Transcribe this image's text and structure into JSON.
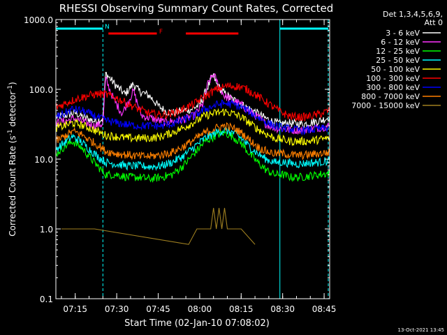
{
  "chart_data": {
    "type": "line",
    "title": "RHESSI Observing Summary Count Rates, Corrected",
    "xlabel": "Start Time (02-Jan-10 07:08:02)",
    "ylabel_main": "Corrected Count Rate (s",
    "ylabel_sup1": "-1",
    "ylabel_mid": " detector",
    "ylabel_sup2": "-1",
    "ylabel_end": ")",
    "y_scale": "log",
    "ylim": [
      0.1,
      1000
    ],
    "x_unit": "minutes after 07:00 UT",
    "xlim": [
      8.0,
      107.0
    ],
    "x_ticks": [
      {
        "x": 15,
        "label": "07:15"
      },
      {
        "x": 30,
        "label": "07:30"
      },
      {
        "x": 45,
        "label": "07:45"
      },
      {
        "x": 60,
        "label": "08:00"
      },
      {
        "x": 75,
        "label": "08:15"
      },
      {
        "x": 90,
        "label": "08:30"
      },
      {
        "x": 105,
        "label": "08:45"
      }
    ],
    "y_ticks": [
      {
        "y": 1000,
        "label": "1000.0"
      },
      {
        "y": 100,
        "label": "100.0"
      },
      {
        "y": 10,
        "label": "10.0"
      },
      {
        "y": 1,
        "label": "1.0"
      },
      {
        "y": 0.1,
        "label": "0.1"
      }
    ],
    "legend_header": [
      "Det 1,3,4,5,6,9,",
      "Att 0"
    ],
    "legend_position": "right",
    "series": [
      {
        "name": "3 - 6 keV",
        "color": "#ffffff",
        "points": [
          [
            8,
            40
          ],
          [
            11,
            42
          ],
          [
            15,
            46
          ],
          [
            18,
            40
          ],
          [
            22,
            35
          ],
          [
            25,
            38
          ],
          [
            26,
            170
          ],
          [
            30,
            110
          ],
          [
            33,
            85
          ],
          [
            36,
            120
          ],
          [
            38,
            95
          ],
          [
            42,
            80
          ],
          [
            45,
            58
          ],
          [
            48,
            48
          ],
          [
            51,
            46
          ],
          [
            54,
            50
          ],
          [
            57,
            52
          ],
          [
            60,
            60
          ],
          [
            63,
            110
          ],
          [
            65,
            160
          ],
          [
            66,
            120
          ],
          [
            68,
            95
          ],
          [
            71,
            75
          ],
          [
            74,
            65
          ],
          [
            77,
            55
          ],
          [
            80,
            48
          ],
          [
            83,
            40
          ],
          [
            86,
            35
          ],
          [
            89,
            32
          ],
          [
            92,
            33
          ],
          [
            95,
            32
          ],
          [
            98,
            32
          ],
          [
            101,
            34
          ],
          [
            104,
            36
          ],
          [
            107,
            40
          ]
        ]
      },
      {
        "name": "6 - 12 keV",
        "color": "#ff33ff",
        "points": [
          [
            8,
            33
          ],
          [
            11,
            35
          ],
          [
            15,
            38
          ],
          [
            18,
            34
          ],
          [
            22,
            30
          ],
          [
            25,
            32
          ],
          [
            26,
            140
          ],
          [
            29,
            70
          ],
          [
            32,
            45
          ],
          [
            36,
            95
          ],
          [
            39,
            42
          ],
          [
            43,
            38
          ],
          [
            47,
            34
          ],
          [
            51,
            35
          ],
          [
            55,
            38
          ],
          [
            58,
            42
          ],
          [
            61,
            60
          ],
          [
            63,
            120
          ],
          [
            65,
            165
          ],
          [
            67,
            110
          ],
          [
            69,
            80
          ],
          [
            72,
            70
          ],
          [
            75,
            60
          ],
          [
            78,
            48
          ],
          [
            81,
            40
          ],
          [
            84,
            32
          ],
          [
            87,
            28
          ],
          [
            90,
            27
          ],
          [
            93,
            26
          ],
          [
            96,
            26
          ],
          [
            99,
            27
          ],
          [
            103,
            28
          ],
          [
            107,
            30
          ]
        ]
      },
      {
        "name": "12 - 25 keV",
        "color": "#00ff00",
        "points": [
          [
            8,
            12
          ],
          [
            11,
            15
          ],
          [
            14,
            18
          ],
          [
            17,
            15
          ],
          [
            20,
            11
          ],
          [
            23,
            8
          ],
          [
            26,
            6
          ],
          [
            30,
            6
          ],
          [
            34,
            5.5
          ],
          [
            38,
            5.5
          ],
          [
            42,
            5.2
          ],
          [
            46,
            5.5
          ],
          [
            50,
            6
          ],
          [
            54,
            8
          ],
          [
            58,
            12
          ],
          [
            62,
            18
          ],
          [
            66,
            22
          ],
          [
            69,
            24
          ],
          [
            72,
            21
          ],
          [
            75,
            17
          ],
          [
            78,
            12
          ],
          [
            81,
            9
          ],
          [
            84,
            7
          ],
          [
            87,
            6
          ],
          [
            90,
            6
          ],
          [
            93,
            5.5
          ],
          [
            96,
            5.5
          ],
          [
            99,
            5.7
          ],
          [
            103,
            6
          ],
          [
            107,
            6.3
          ]
        ]
      },
      {
        "name": "25 - 50 keV",
        "color": "#00ffff",
        "points": [
          [
            8,
            14
          ],
          [
            11,
            17
          ],
          [
            14,
            21
          ],
          [
            17,
            18
          ],
          [
            20,
            14
          ],
          [
            23,
            11
          ],
          [
            26,
            9
          ],
          [
            30,
            8.5
          ],
          [
            34,
            8
          ],
          [
            38,
            8
          ],
          [
            42,
            7.8
          ],
          [
            46,
            8
          ],
          [
            50,
            9
          ],
          [
            54,
            11
          ],
          [
            58,
            15
          ],
          [
            62,
            20
          ],
          [
            66,
            24
          ],
          [
            69,
            26
          ],
          [
            72,
            24
          ],
          [
            75,
            20
          ],
          [
            78,
            15
          ],
          [
            81,
            12
          ],
          [
            84,
            10
          ],
          [
            87,
            9
          ],
          [
            90,
            9
          ],
          [
            93,
            8.7
          ],
          [
            96,
            8.5
          ],
          [
            99,
            8.8
          ],
          [
            103,
            9
          ],
          [
            107,
            9.5
          ]
        ]
      },
      {
        "name": "50 - 100 keV",
        "color": "#ffff00",
        "points": [
          [
            8,
            28
          ],
          [
            11,
            30
          ],
          [
            14,
            33
          ],
          [
            17,
            31
          ],
          [
            20,
            28
          ],
          [
            23,
            25
          ],
          [
            26,
            22
          ],
          [
            30,
            21
          ],
          [
            34,
            20
          ],
          [
            38,
            20
          ],
          [
            42,
            20
          ],
          [
            46,
            21
          ],
          [
            50,
            24
          ],
          [
            54,
            28
          ],
          [
            58,
            34
          ],
          [
            62,
            42
          ],
          [
            66,
            46
          ],
          [
            69,
            48
          ],
          [
            72,
            45
          ],
          [
            75,
            40
          ],
          [
            78,
            33
          ],
          [
            81,
            27
          ],
          [
            84,
            23
          ],
          [
            87,
            20
          ],
          [
            90,
            19
          ],
          [
            93,
            18
          ],
          [
            96,
            18
          ],
          [
            99,
            18
          ],
          [
            103,
            19
          ],
          [
            107,
            20
          ]
        ]
      },
      {
        "name": "100 - 300 keV",
        "color": "#ff0000",
        "points": [
          [
            8,
            55
          ],
          [
            11,
            62
          ],
          [
            15,
            72
          ],
          [
            19,
            80
          ],
          [
            23,
            86
          ],
          [
            26,
            85
          ],
          [
            30,
            75
          ],
          [
            34,
            62
          ],
          [
            38,
            52
          ],
          [
            42,
            45
          ],
          [
            46,
            43
          ],
          [
            50,
            45
          ],
          [
            54,
            52
          ],
          [
            58,
            62
          ],
          [
            62,
            80
          ],
          [
            66,
            100
          ],
          [
            70,
            112
          ],
          [
            74,
            110
          ],
          [
            77,
            100
          ],
          [
            80,
            85
          ],
          [
            83,
            70
          ],
          [
            86,
            58
          ],
          [
            89,
            48
          ],
          [
            92,
            42
          ],
          [
            95,
            40
          ],
          [
            98,
            40
          ],
          [
            101,
            42
          ],
          [
            104,
            45
          ],
          [
            107,
            50
          ]
        ]
      },
      {
        "name": "300 - 800 keV",
        "color": "#0000ff",
        "points": [
          [
            8,
            40
          ],
          [
            11,
            45
          ],
          [
            14,
            52
          ],
          [
            17,
            50
          ],
          [
            20,
            45
          ],
          [
            23,
            40
          ],
          [
            26,
            36
          ],
          [
            30,
            33
          ],
          [
            34,
            31
          ],
          [
            38,
            30
          ],
          [
            42,
            30
          ],
          [
            46,
            30
          ],
          [
            50,
            32
          ],
          [
            54,
            36
          ],
          [
            58,
            42
          ],
          [
            62,
            52
          ],
          [
            66,
            60
          ],
          [
            69,
            63
          ],
          [
            72,
            61
          ],
          [
            75,
            56
          ],
          [
            78,
            48
          ],
          [
            81,
            40
          ],
          [
            84,
            34
          ],
          [
            87,
            30
          ],
          [
            90,
            28
          ],
          [
            93,
            27
          ],
          [
            96,
            26
          ],
          [
            99,
            26
          ],
          [
            103,
            27
          ],
          [
            107,
            28
          ]
        ]
      },
      {
        "name": "800 - 7000 keV",
        "color": "#ff8000",
        "points": [
          [
            8,
            18
          ],
          [
            11,
            21
          ],
          [
            14,
            25
          ],
          [
            17,
            23
          ],
          [
            20,
            19
          ],
          [
            23,
            16
          ],
          [
            26,
            13
          ],
          [
            30,
            12
          ],
          [
            34,
            11.5
          ],
          [
            38,
            11
          ],
          [
            42,
            11
          ],
          [
            46,
            11.5
          ],
          [
            50,
            12.5
          ],
          [
            54,
            15
          ],
          [
            58,
            19
          ],
          [
            62,
            24
          ],
          [
            66,
            28
          ],
          [
            69,
            30
          ],
          [
            72,
            28
          ],
          [
            75,
            24
          ],
          [
            78,
            19
          ],
          [
            81,
            15
          ],
          [
            84,
            13
          ],
          [
            87,
            12
          ],
          [
            90,
            12
          ],
          [
            93,
            11.5
          ],
          [
            96,
            11.3
          ],
          [
            99,
            11.5
          ],
          [
            103,
            12
          ],
          [
            107,
            12.5
          ]
        ]
      },
      {
        "name": "7000 - 15000 keV",
        "color": "#a08020",
        "points": [
          [
            10,
            1.0
          ],
          [
            13,
            1.0
          ],
          [
            16,
            1.0
          ],
          [
            19,
            1.0
          ],
          [
            22,
            1.0
          ],
          [
            56,
            0.6
          ],
          [
            59,
            1.0
          ],
          [
            62,
            1.0
          ],
          [
            64,
            1.0
          ],
          [
            65,
            2.0
          ],
          [
            66,
            1.0
          ],
          [
            67,
            2.0
          ],
          [
            68,
            1.0
          ],
          [
            69,
            2.0
          ],
          [
            70,
            1.0
          ],
          [
            72,
            1.0
          ],
          [
            75,
            1.0
          ],
          [
            80,
            0.6
          ]
        ]
      }
    ],
    "status_bars": [
      {
        "label": "N",
        "label_color": "#00ffff",
        "color": "#00ffff",
        "x_start": 8.0,
        "x_end": 25.0,
        "level": "high"
      },
      {
        "label": "",
        "label_color": "#00ffff",
        "color": "#00ffff",
        "x_start": 89.0,
        "x_end": 106.5,
        "level": "high"
      },
      {
        "label": "F",
        "label_color": "#ff0000",
        "color": "#ff0000",
        "x_start": 27.0,
        "x_end": 44.5,
        "level": "low"
      },
      {
        "label": "",
        "label_color": "#ff0000",
        "color": "#ff0000",
        "x_start": 55.0,
        "x_end": 74.0,
        "level": "low"
      }
    ],
    "night_boundaries": [
      {
        "x": 8.0,
        "style": "solid"
      },
      {
        "x": 25.0,
        "style": "dashed"
      },
      {
        "x": 89.0,
        "style": "solid"
      },
      {
        "x": 106.5,
        "style": "dashed"
      }
    ]
  },
  "footer": {
    "timestamp": "13-Oct-2021 13:45"
  }
}
